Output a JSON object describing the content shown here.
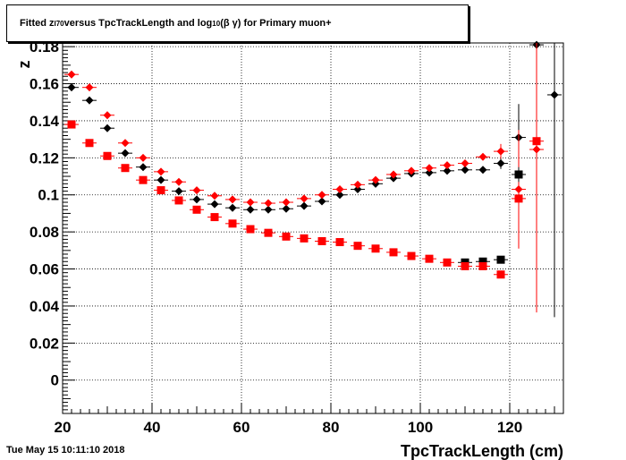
{
  "title": {
    "prefix": "Fitted  z",
    "sub1": "I70",
    "mid": "  versus TpcTrackLength and log",
    "sub2": "10",
    "suffix": " (β γ) for Primary muon+"
  },
  "timestamp": "Tue May 15 10:11:10 2018",
  "colors": {
    "black": "#000000",
    "red": "#ff0000",
    "grid": "#000000"
  },
  "chart_data": {
    "type": "scatter",
    "title": "Fitted z_I70 versus TpcTrackLength and log10 (β γ) for Primary muon+",
    "xlabel": "TpcTrackLength (cm)",
    "ylabel": "z",
    "xlim": [
      20,
      132
    ],
    "ylim": [
      -0.018,
      0.182
    ],
    "x_ticks": [
      20,
      40,
      60,
      80,
      100,
      120
    ],
    "x_tick_labels": [
      "20",
      "40",
      "60",
      "80",
      "100",
      "120"
    ],
    "y_ticks": [
      0,
      0.02,
      0.04,
      0.06,
      0.08,
      0.1,
      0.12,
      0.14,
      0.16,
      0.18
    ],
    "y_tick_labels": [
      "0",
      "0.02",
      "0.04",
      "0.06",
      "0.08",
      "0.1",
      "0.12",
      "0.14",
      "0.16",
      "0.18"
    ],
    "grid": true,
    "series": [
      {
        "marker": "diamond",
        "color": "#000000",
        "points": [
          [
            22,
            0.158,
            0.002
          ],
          [
            26,
            0.151,
            0.002
          ],
          [
            30,
            0.136,
            0.002
          ],
          [
            34,
            0.1225,
            0.001
          ],
          [
            38,
            0.115,
            0.001
          ],
          [
            42,
            0.108,
            0.001
          ],
          [
            46,
            0.102,
            0.001
          ],
          [
            50,
            0.0975,
            0.001
          ],
          [
            54,
            0.095,
            0.001
          ],
          [
            58,
            0.093,
            0.001
          ],
          [
            62,
            0.092,
            0.001
          ],
          [
            66,
            0.092,
            0.001
          ],
          [
            70,
            0.0925,
            0.001
          ],
          [
            74,
            0.094,
            0.001
          ],
          [
            78,
            0.0965,
            0.001
          ],
          [
            82,
            0.1,
            0.001
          ],
          [
            86,
            0.103,
            0.001
          ],
          [
            90,
            0.106,
            0.001
          ],
          [
            94,
            0.109,
            0.001
          ],
          [
            98,
            0.1115,
            0.001
          ],
          [
            102,
            0.112,
            0.001
          ],
          [
            106,
            0.113,
            0.001
          ],
          [
            110,
            0.1135,
            0.001
          ],
          [
            114,
            0.1135,
            0.001
          ],
          [
            118,
            0.117,
            0.003
          ],
          [
            122,
            0.131,
            0.018
          ],
          [
            126,
            0.181,
            0.12
          ],
          [
            130,
            0.154,
            0.12
          ]
        ]
      },
      {
        "marker": "diamond",
        "color": "#ff0000",
        "points": [
          [
            22,
            0.165,
            0.002
          ],
          [
            26,
            0.158,
            0.002
          ],
          [
            30,
            0.143,
            0.002
          ],
          [
            34,
            0.128,
            0.001
          ],
          [
            38,
            0.12,
            0.001
          ],
          [
            42,
            0.1125,
            0.001
          ],
          [
            46,
            0.107,
            0.001
          ],
          [
            50,
            0.1025,
            0.001
          ],
          [
            54,
            0.0995,
            0.001
          ],
          [
            58,
            0.0975,
            0.001
          ],
          [
            62,
            0.096,
            0.001
          ],
          [
            66,
            0.0955,
            0.001
          ],
          [
            70,
            0.096,
            0.001
          ],
          [
            74,
            0.098,
            0.001
          ],
          [
            78,
            0.1,
            0.001
          ],
          [
            82,
            0.103,
            0.001
          ],
          [
            86,
            0.1055,
            0.001
          ],
          [
            90,
            0.108,
            0.001
          ],
          [
            94,
            0.111,
            0.001
          ],
          [
            98,
            0.113,
            0.001
          ],
          [
            102,
            0.1145,
            0.001
          ],
          [
            106,
            0.116,
            0.001
          ],
          [
            110,
            0.117,
            0.001
          ],
          [
            114,
            0.1205,
            0.001
          ],
          [
            118,
            0.1235,
            0.004
          ],
          [
            122,
            0.103,
            0.032
          ],
          [
            126,
            0.1245,
            0.088
          ]
        ]
      },
      {
        "marker": "square",
        "color": "#000000",
        "points": [
          [
            110,
            0.0635,
            0.001
          ],
          [
            114,
            0.064,
            0.001
          ],
          [
            118,
            0.065,
            0.001
          ],
          [
            122,
            0.111,
            0.004
          ]
        ]
      },
      {
        "marker": "square",
        "color": "#ff0000",
        "points": [
          [
            22,
            0.138,
            0.002
          ],
          [
            26,
            0.128,
            0.001
          ],
          [
            30,
            0.121,
            0.001
          ],
          [
            34,
            0.1145,
            0.001
          ],
          [
            38,
            0.108,
            0.001
          ],
          [
            42,
            0.1025,
            0.001
          ],
          [
            46,
            0.097,
            0.001
          ],
          [
            50,
            0.092,
            0.001
          ],
          [
            54,
            0.088,
            0.001
          ],
          [
            58,
            0.0845,
            0.001
          ],
          [
            62,
            0.0815,
            0.001
          ],
          [
            66,
            0.0795,
            0.001
          ],
          [
            70,
            0.0775,
            0.001
          ],
          [
            74,
            0.0765,
            0.001
          ],
          [
            78,
            0.075,
            0.001
          ],
          [
            82,
            0.0745,
            0.001
          ],
          [
            86,
            0.0725,
            0.001
          ],
          [
            90,
            0.071,
            0.001
          ],
          [
            94,
            0.069,
            0.001
          ],
          [
            98,
            0.067,
            0.001
          ],
          [
            102,
            0.0655,
            0.001
          ],
          [
            106,
            0.0635,
            0.001
          ],
          [
            110,
            0.0615,
            0.001
          ],
          [
            114,
            0.0615,
            0.001
          ],
          [
            118,
            0.057,
            0.002
          ],
          [
            122,
            0.098,
            0.008
          ],
          [
            126,
            0.129,
            0.004
          ]
        ]
      }
    ]
  }
}
